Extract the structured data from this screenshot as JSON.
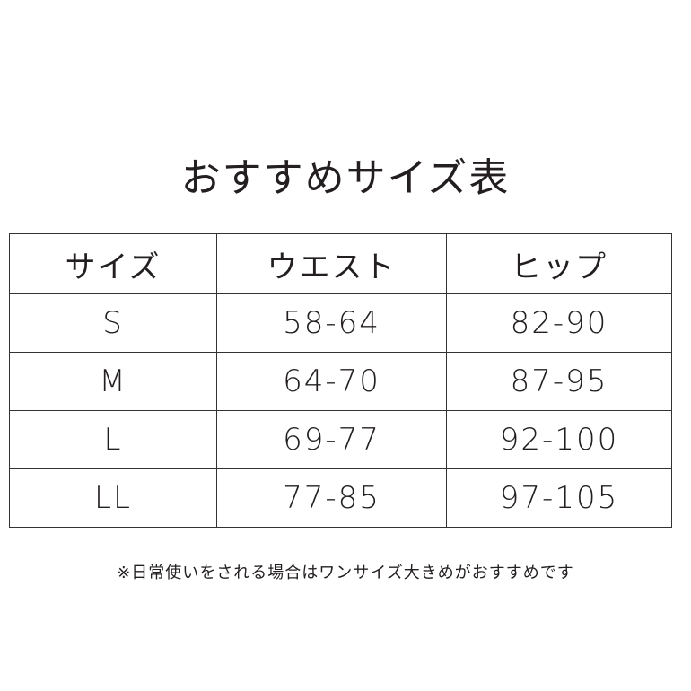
{
  "title": "おすすめサイズ表",
  "table": {
    "headers": [
      "サイズ",
      "ウエスト",
      "ヒップ"
    ],
    "rows": [
      [
        "S",
        "58-64",
        "82-90"
      ],
      [
        "M",
        "64-70",
        "87-95"
      ],
      [
        "L",
        "69-77",
        "92-100"
      ],
      [
        "LL",
        "77-85",
        "97-105"
      ]
    ]
  },
  "note": "※日常使いをされる場合はワンサイズ大きめがおすすめです"
}
